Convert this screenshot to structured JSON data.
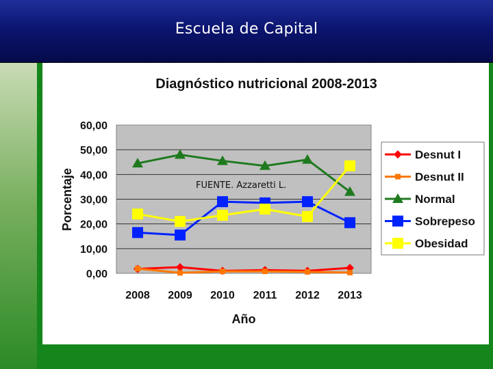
{
  "header": {
    "title": "Escuela de Capital"
  },
  "chart_data": {
    "type": "line",
    "title": "Diagnóstico nutricional 2008-2013",
    "xlabel": "Año",
    "ylabel": "Porcentaje",
    "categories": [
      "2008",
      "2009",
      "2010",
      "2011",
      "2012",
      "2013"
    ],
    "ylim": [
      0,
      60
    ],
    "yticks": [
      "0,00",
      "10,00",
      "20,00",
      "30,00",
      "40,00",
      "50,00",
      "60,00"
    ],
    "grid": true,
    "legend": "right",
    "annotation": "FUENTE. Azzaretti L.",
    "series": [
      {
        "name": "Desnut I",
        "color": "#ff0000",
        "marker": "diamond",
        "values": [
          1.8,
          2.5,
          1.0,
          1.3,
          1.0,
          2.2
        ]
      },
      {
        "name": "Desnut II",
        "color": "#ff7700",
        "marker": "square",
        "values": [
          1.9,
          0.2,
          0.8,
          0.8,
          0.6,
          0.3
        ]
      },
      {
        "name": "Normal",
        "color": "#1f7a1f",
        "marker": "triangle",
        "values": [
          44.5,
          48.0,
          45.5,
          43.5,
          46.0,
          33.0
        ]
      },
      {
        "name": "Sobrepeso",
        "color": "#0022ff",
        "marker": "square",
        "values": [
          16.5,
          15.5,
          29.0,
          28.5,
          29.0,
          20.5
        ]
      },
      {
        "name": "Obesidad",
        "color": "#ffff00",
        "marker": "square",
        "values": [
          24.0,
          21.0,
          23.5,
          26.0,
          23.0,
          43.5
        ]
      }
    ]
  }
}
